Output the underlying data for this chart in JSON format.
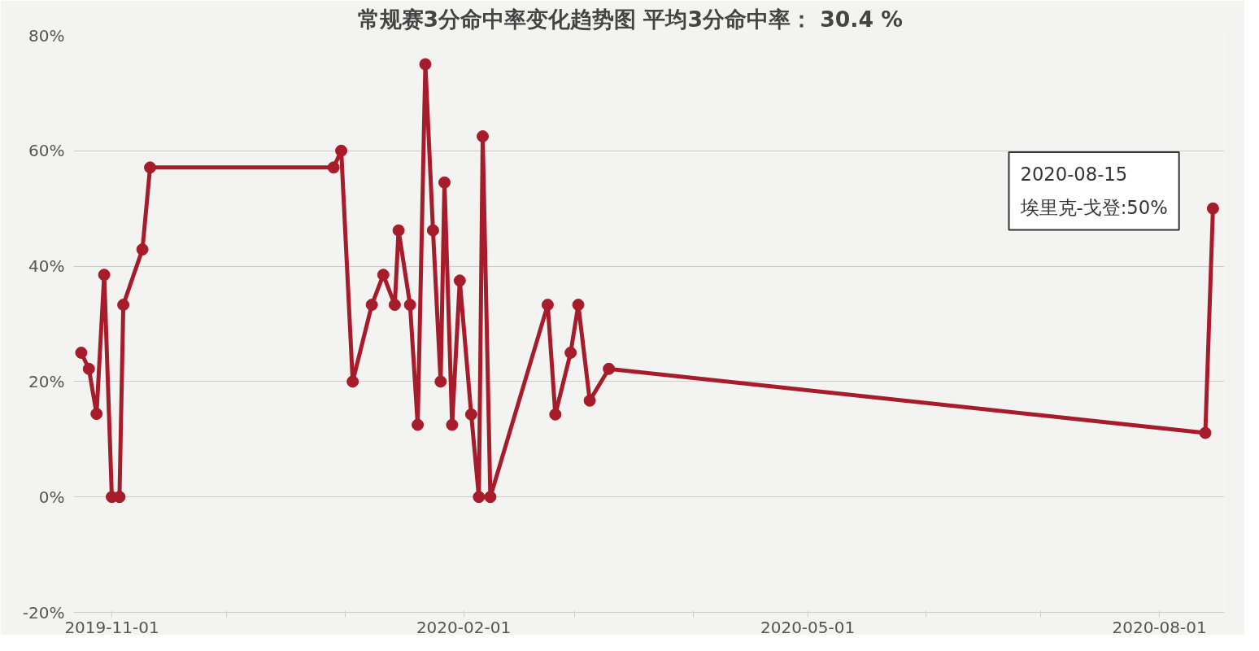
{
  "chart_data": {
    "type": "line",
    "title": "常规赛3分命中率变化趋势图     平均3分命中率：  30.4 %",
    "x": [
      "2019-10-24",
      "2019-10-26",
      "2019-10-28",
      "2019-10-30",
      "2019-11-01",
      "2019-11-03",
      "2019-11-04",
      "2019-11-09",
      "2019-11-11",
      "2019-12-29",
      "2019-12-31",
      "2020-01-03",
      "2020-01-08",
      "2020-01-11",
      "2020-01-14",
      "2020-01-15",
      "2020-01-18",
      "2020-01-20",
      "2020-01-22",
      "2020-01-24",
      "2020-01-26",
      "2020-01-27",
      "2020-01-29",
      "2020-01-31",
      "2020-02-03",
      "2020-02-05",
      "2020-02-06",
      "2020-02-08",
      "2020-02-23",
      "2020-02-25",
      "2020-02-29",
      "2020-03-02",
      "2020-03-05",
      "2020-03-10",
      "2020-08-13",
      "2020-08-15"
    ],
    "series": [
      {
        "color": "#a61c2a",
        "values": [
          25,
          22.2,
          14.4,
          38.5,
          0,
          0,
          33.3,
          42.9,
          57.1,
          57.1,
          60,
          20,
          33.3,
          38.5,
          33.3,
          46.2,
          33.3,
          12.5,
          75,
          46.2,
          20,
          54.5,
          12.5,
          37.5,
          14.3,
          0,
          62.5,
          0,
          33.3,
          14.3,
          25,
          33.3,
          16.7,
          22.2,
          11.1,
          50
        ]
      }
    ],
    "xlim": [
      "2019-10-22",
      "2020-08-18"
    ],
    "xticks": [
      {
        "value": "2019-11-01",
        "label": "2019-11-01"
      },
      {
        "value": "2019-12-01",
        "label": null
      },
      {
        "value": "2020-01-01",
        "label": null
      },
      {
        "value": "2020-02-01",
        "label": "2020-02-01"
      },
      {
        "value": "2020-03-01",
        "label": null
      },
      {
        "value": "2020-04-01",
        "label": null
      },
      {
        "value": "2020-05-01",
        "label": "2020-05-01"
      },
      {
        "value": "2020-06-01",
        "label": null
      },
      {
        "value": "2020-07-01",
        "label": null
      },
      {
        "value": "2020-08-01",
        "label": "2020-08-01"
      }
    ],
    "ylim": [
      -20,
      80
    ],
    "yticks": [
      {
        "value": -20,
        "label": "-20%"
      },
      {
        "value": 0,
        "label": "0%"
      },
      {
        "value": 20,
        "label": "20%"
      },
      {
        "value": 40,
        "label": "40%"
      },
      {
        "value": 60,
        "label": "60%"
      },
      {
        "value": 80,
        "label": "80%"
      }
    ],
    "grid": "y",
    "marker": "circle",
    "line_style": "solid",
    "annotations": [
      "2020-08-15\n埃里克-戈登:50%"
    ]
  }
}
